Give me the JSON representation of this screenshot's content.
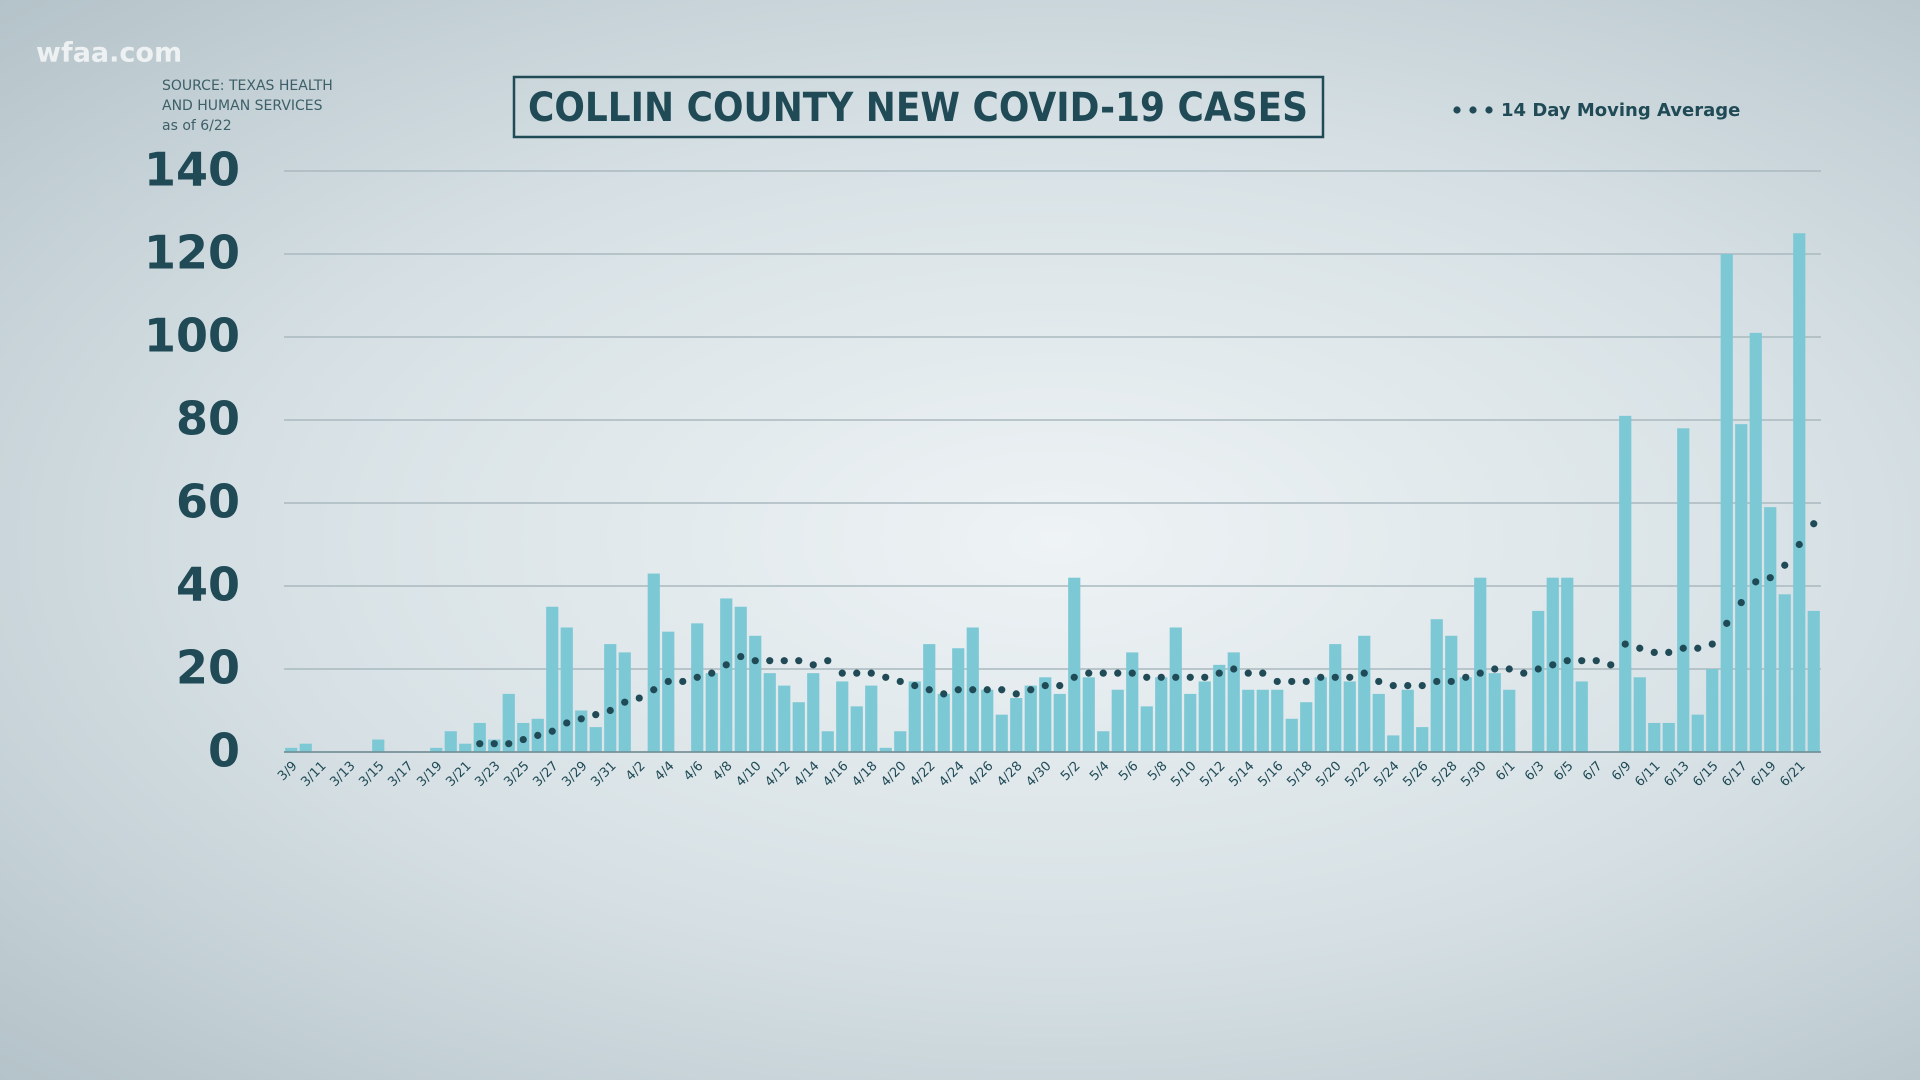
{
  "watermark": "wfaa.com",
  "chart_data": {
    "type": "bar",
    "title": "COLLIN COUNTY NEW COVID-19 CASES",
    "source": [
      "SOURCE: TEXAS HEALTH",
      "AND HUMAN SERVICES",
      "as of 6/22"
    ],
    "categories": [
      "3/9",
      null,
      "3/11",
      null,
      "3/13",
      null,
      "3/15",
      null,
      "3/17",
      null,
      "3/19",
      null,
      "3/21",
      null,
      "3/23",
      null,
      "3/25",
      null,
      "3/27",
      null,
      "3/29",
      null,
      "3/31",
      null,
      "4/2",
      null,
      "4/4",
      null,
      "4/6",
      null,
      "4/8",
      null,
      "4/10",
      null,
      "4/12",
      null,
      "4/14",
      null,
      "4/16",
      null,
      "4/18",
      null,
      "4/20",
      null,
      "4/22",
      null,
      "4/24",
      null,
      "4/26",
      null,
      "4/28",
      null,
      "4/30",
      null,
      "5/2",
      null,
      "5/4",
      null,
      "5/6",
      null,
      "5/8",
      null,
      "5/10",
      null,
      "5/12",
      null,
      "5/14",
      null,
      "5/16",
      null,
      "5/18",
      null,
      "5/20",
      null,
      "5/22",
      null,
      "5/24",
      null,
      "5/26",
      null,
      "5/28",
      null,
      "5/30",
      null,
      "6/1",
      null,
      "6/3",
      null,
      "6/5",
      null,
      "6/7",
      null,
      "6/9",
      null,
      "6/11",
      null,
      "6/13",
      null,
      "6/15",
      null,
      "6/17",
      null,
      "6/19",
      null,
      "6/21",
      null
    ],
    "series": [
      {
        "type": "bar",
        "color": "#7dc8d5",
        "values": [
          1,
          2,
          0,
          0,
          0,
          0,
          3,
          0,
          0,
          0,
          1,
          5,
          2,
          7,
          3,
          14,
          7,
          8,
          35,
          30,
          10,
          6,
          26,
          24,
          0,
          43,
          29,
          0,
          31,
          19,
          37,
          35,
          28,
          19,
          16,
          12,
          19,
          5,
          17,
          11,
          16,
          1,
          5,
          17,
          26,
          14,
          25,
          30,
          15,
          9,
          13,
          16,
          18,
          14,
          42,
          18,
          5,
          15,
          24,
          11,
          18,
          30,
          14,
          17,
          21,
          24,
          15,
          15,
          15,
          8,
          12,
          18,
          26,
          17,
          28,
          14,
          4,
          15,
          6,
          32,
          28,
          18,
          42,
          19,
          15,
          0,
          34,
          42,
          42,
          17,
          0,
          0,
          81,
          18,
          7,
          7,
          78,
          9,
          20,
          120,
          79,
          101,
          59,
          38,
          125,
          34
        ]
      },
      {
        "type": "line",
        "name": "14 Day Moving Average",
        "color": "#1f4a56",
        "values": [
          null,
          null,
          null,
          null,
          null,
          null,
          null,
          null,
          null,
          null,
          null,
          null,
          null,
          2,
          2,
          2,
          3,
          4,
          5,
          7,
          8,
          9,
          10,
          12,
          13,
          15,
          17,
          17,
          18,
          19,
          21,
          23,
          22,
          22,
          22,
          22,
          21,
          22,
          19,
          19,
          19,
          18,
          17,
          16,
          15,
          14,
          15,
          15,
          15,
          15,
          14,
          15,
          16,
          16,
          18,
          19,
          19,
          19,
          19,
          18,
          18,
          18,
          18,
          18,
          19,
          20,
          19,
          19,
          17,
          17,
          17,
          18,
          18,
          18,
          19,
          17,
          16,
          16,
          16,
          17,
          17,
          18,
          19,
          20,
          20,
          19,
          20,
          21,
          22,
          22,
          22,
          21,
          26,
          25,
          24,
          24,
          25,
          25,
          26,
          31,
          36,
          41,
          42,
          45,
          50,
          55
        ]
      }
    ],
    "ylim": [
      0,
      140
    ],
    "yticks": [
      0,
      20,
      40,
      60,
      80,
      100,
      120,
      140
    ],
    "grid": true
  }
}
